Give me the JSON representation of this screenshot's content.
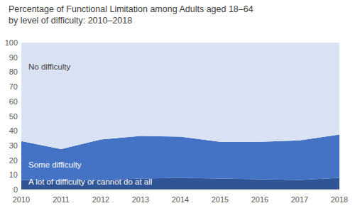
{
  "chart_data": {
    "type": "area",
    "title": "Percentage of Functional Limitation among Adults aged 18–64 by level of difficulty: 2010–2018",
    "categories": [
      "2010",
      "2011",
      "2012",
      "2013",
      "2014",
      "2015",
      "2016",
      "2017",
      "2018"
    ],
    "series": [
      {
        "name": "A lot of difficulty or cannot do at all",
        "color": "#2f5597",
        "values": [
          6.5,
          6,
          6.5,
          7.5,
          8,
          7.5,
          7,
          6.5,
          8
        ]
      },
      {
        "name": "Some difficulty",
        "color": "#4472c4",
        "values": [
          26.5,
          21.5,
          27.5,
          29,
          28,
          25,
          25.5,
          27,
          29.5
        ]
      },
      {
        "name": "No difficulty",
        "color": "#dae3f3",
        "values": [
          67,
          72.5,
          66,
          63.5,
          64,
          67.5,
          67.5,
          66.5,
          62.5
        ]
      }
    ],
    "stacked": true,
    "grid": false,
    "ylim": [
      0,
      100
    ],
    "yticks": [
      0,
      10,
      20,
      30,
      40,
      50,
      60,
      70,
      80,
      90,
      100
    ]
  }
}
